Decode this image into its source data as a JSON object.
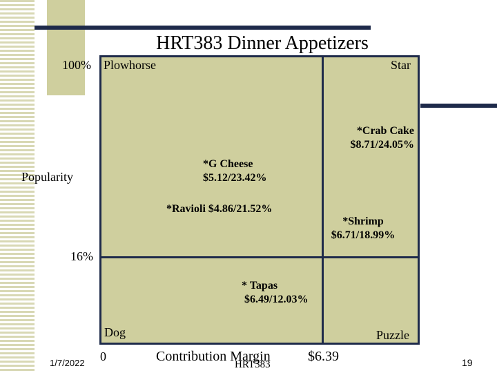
{
  "slide": {
    "title": "HRT383 Dinner Appetizers",
    "footer_date": "1/7/2022",
    "footer_course": "HRT383",
    "page_number": "19"
  },
  "axes": {
    "y_top": "100%",
    "y_mid": "16%",
    "y_label": "Popularity",
    "x_min": "0",
    "x_label": "Contribution Margin",
    "x_max": "$6.39"
  },
  "quadrants": {
    "top_left": "Plowhorse",
    "top_right": "Star",
    "bottom_left": "Dog",
    "bottom_right": "Puzzle"
  },
  "items": {
    "crab_cake": {
      "line1": "*Crab Cake",
      "line2": "$8.71/24.05%"
    },
    "g_cheese": {
      "line1": "*G Cheese",
      "line2": "$5.12/23.42%"
    },
    "ravioli": {
      "line1": "*Ravioli $4.86/21.52%"
    },
    "shrimp": {
      "line1": "*Shrimp",
      "line2": "$6.71/18.99%"
    },
    "tapas": {
      "line1": "* Tapas",
      "line2": "$6.49/12.03%"
    }
  },
  "colors": {
    "matrix_fill": "#cfcf9e",
    "rule_navy": "#1e2a4a",
    "stripe": "#d8d8b4"
  }
}
